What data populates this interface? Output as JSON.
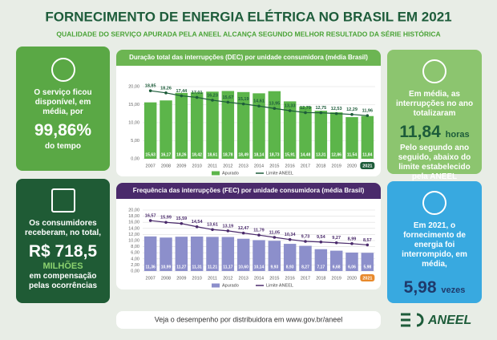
{
  "header": {
    "title": "FORNECIMENTO DE ENERGIA ELÉTRICA NO BRASIL EM 2021",
    "subtitle": "QUALIDADE DO SERVIÇO APURADA PELA ANEEL ALCANÇA SEGUNDO MELHOR RESULTADO DA SÉRIE HISTÓRICA"
  },
  "panels": [
    {
      "text": "O serviço ficou disponível, em média, por",
      "highlight": "99,86%",
      "footer": "do tempo"
    },
    {
      "text": "Os consumidores receberam, no total,",
      "highlight": "R$ 718,5",
      "unit": "MILHÕES",
      "footer": "em compensação pelas ocorrências"
    },
    {
      "text": "Em média, as interrupções no ano totalizaram",
      "highlight": "11,84",
      "unit": "horas",
      "footer": "Pelo segundo ano seguido, abaixo do limite estabelecido pela ANEEL"
    },
    {
      "text": "Em 2021, o fornecimento de energia foi interrompido, em média,",
      "highlight": "5,98",
      "unit": "vezes"
    }
  ],
  "footer": {
    "link": "Veja o desempenho por distribuidora em www.gov.br/aneel",
    "logo": "ANEEL"
  },
  "chart_data": [
    {
      "type": "bar",
      "title": "Duração total das interrupções (DEC) por unidade consumidora (média Brasil)",
      "categories": [
        "2007",
        "2008",
        "2009",
        "2010",
        "2011",
        "2012",
        "2013",
        "2014",
        "2015",
        "2016",
        "2017",
        "2018",
        "2019",
        "2020",
        "2021"
      ],
      "series": [
        {
          "name": "Apurado",
          "type": "bar",
          "color": "#5cb54a",
          "values": [
            15.63,
            16.17,
            18.26,
            18.42,
            18.61,
            18.78,
            18.49,
            18.14,
            18.73,
            15.91,
            14.48,
            13.31,
            12.86,
            11.54,
            11.84
          ],
          "value_labels": [
            "15,63",
            "16,17",
            "18,26",
            "18,42",
            "18,61",
            "18,78",
            "18,49",
            "18,14",
            "18,73",
            "15,91",
            "14,48",
            "13,31",
            "12,86",
            "11,54",
            "11,84"
          ]
        },
        {
          "name": "Limite ANEEL",
          "type": "line",
          "color": "#1d5c3a",
          "values": [
            18.85,
            18.26,
            17.44,
            17.01,
            16.23,
            15.67,
            15.19,
            14.61,
            13.95,
            13.33,
            12.79,
            12.75,
            12.53,
            12.29,
            11.96
          ],
          "value_labels": [
            "18,85",
            "18,26",
            "17,44",
            "17,01",
            "16,23",
            "15,67",
            "15,19",
            "14,61",
            "13,95",
            "13,33",
            "12,79",
            "12,75",
            "12,53",
            "12,29",
            "11,96"
          ]
        }
      ],
      "ylim": [
        0,
        20
      ],
      "yticks": [
        {
          "value": 0,
          "label": "0,00"
        },
        {
          "value": 5,
          "label": "5,00"
        },
        {
          "value": 10,
          "label": "10,00"
        },
        {
          "value": 15,
          "label": "15,00"
        },
        {
          "value": 20,
          "label": "20,00"
        }
      ],
      "grid": true,
      "header_color": "#6cb552"
    },
    {
      "type": "bar",
      "title": "Frequência das interrupções (FEC) por unidade consumidora (média Brasil)",
      "categories": [
        "2007",
        "2008",
        "2009",
        "2010",
        "2011",
        "2012",
        "2013",
        "2014",
        "2015",
        "2016",
        "2017",
        "2018",
        "2019",
        "2020",
        "2021"
      ],
      "series": [
        {
          "name": "Apurado",
          "type": "bar",
          "color": "#8c8fcb",
          "values": [
            11.36,
            10.99,
            11.27,
            11.31,
            11.21,
            11.17,
            10.6,
            10.14,
            9.93,
            8.93,
            8.27,
            7.17,
            6.68,
            6.06,
            5.98
          ],
          "value_labels": [
            "11,36",
            "10,99",
            "11,27",
            "11,31",
            "11,21",
            "11,17",
            "10,60",
            "10,14",
            "9,93",
            "8,93",
            "8,27",
            "7,17",
            "6,68",
            "6,06",
            "5,98"
          ]
        },
        {
          "name": "Limite ANEEL",
          "type": "line",
          "color": "#4a2a6b",
          "values": [
            16.57,
            15.99,
            15.59,
            14.54,
            13.61,
            13.19,
            12.47,
            11.79,
            11.05,
            10.34,
            9.73,
            9.54,
            9.27,
            8.99,
            8.57
          ],
          "value_labels": [
            "16,57",
            "15,99",
            "15,59",
            "14,54",
            "13,61",
            "13,19",
            "12,47",
            "11,79",
            "11,05",
            "10,34",
            "9,73",
            "9,54",
            "9,27",
            "8,99",
            "8,57"
          ]
        }
      ],
      "ylim": [
        0,
        20
      ],
      "yticks": [
        {
          "value": 0,
          "label": "0,00"
        },
        {
          "value": 2,
          "label": "2,00"
        },
        {
          "value": 4,
          "label": "4,00"
        },
        {
          "value": 6,
          "label": "6,00"
        },
        {
          "value": 8,
          "label": "8,00"
        },
        {
          "value": 10,
          "label": "10,00"
        },
        {
          "value": 12,
          "label": "12,00"
        },
        {
          "value": 14,
          "label": "14,00"
        },
        {
          "value": 16,
          "label": "16,00"
        },
        {
          "value": 18,
          "label": "18,00"
        },
        {
          "value": 20,
          "label": "20,00"
        }
      ],
      "grid": true,
      "header_color": "#4a2a6b"
    }
  ]
}
